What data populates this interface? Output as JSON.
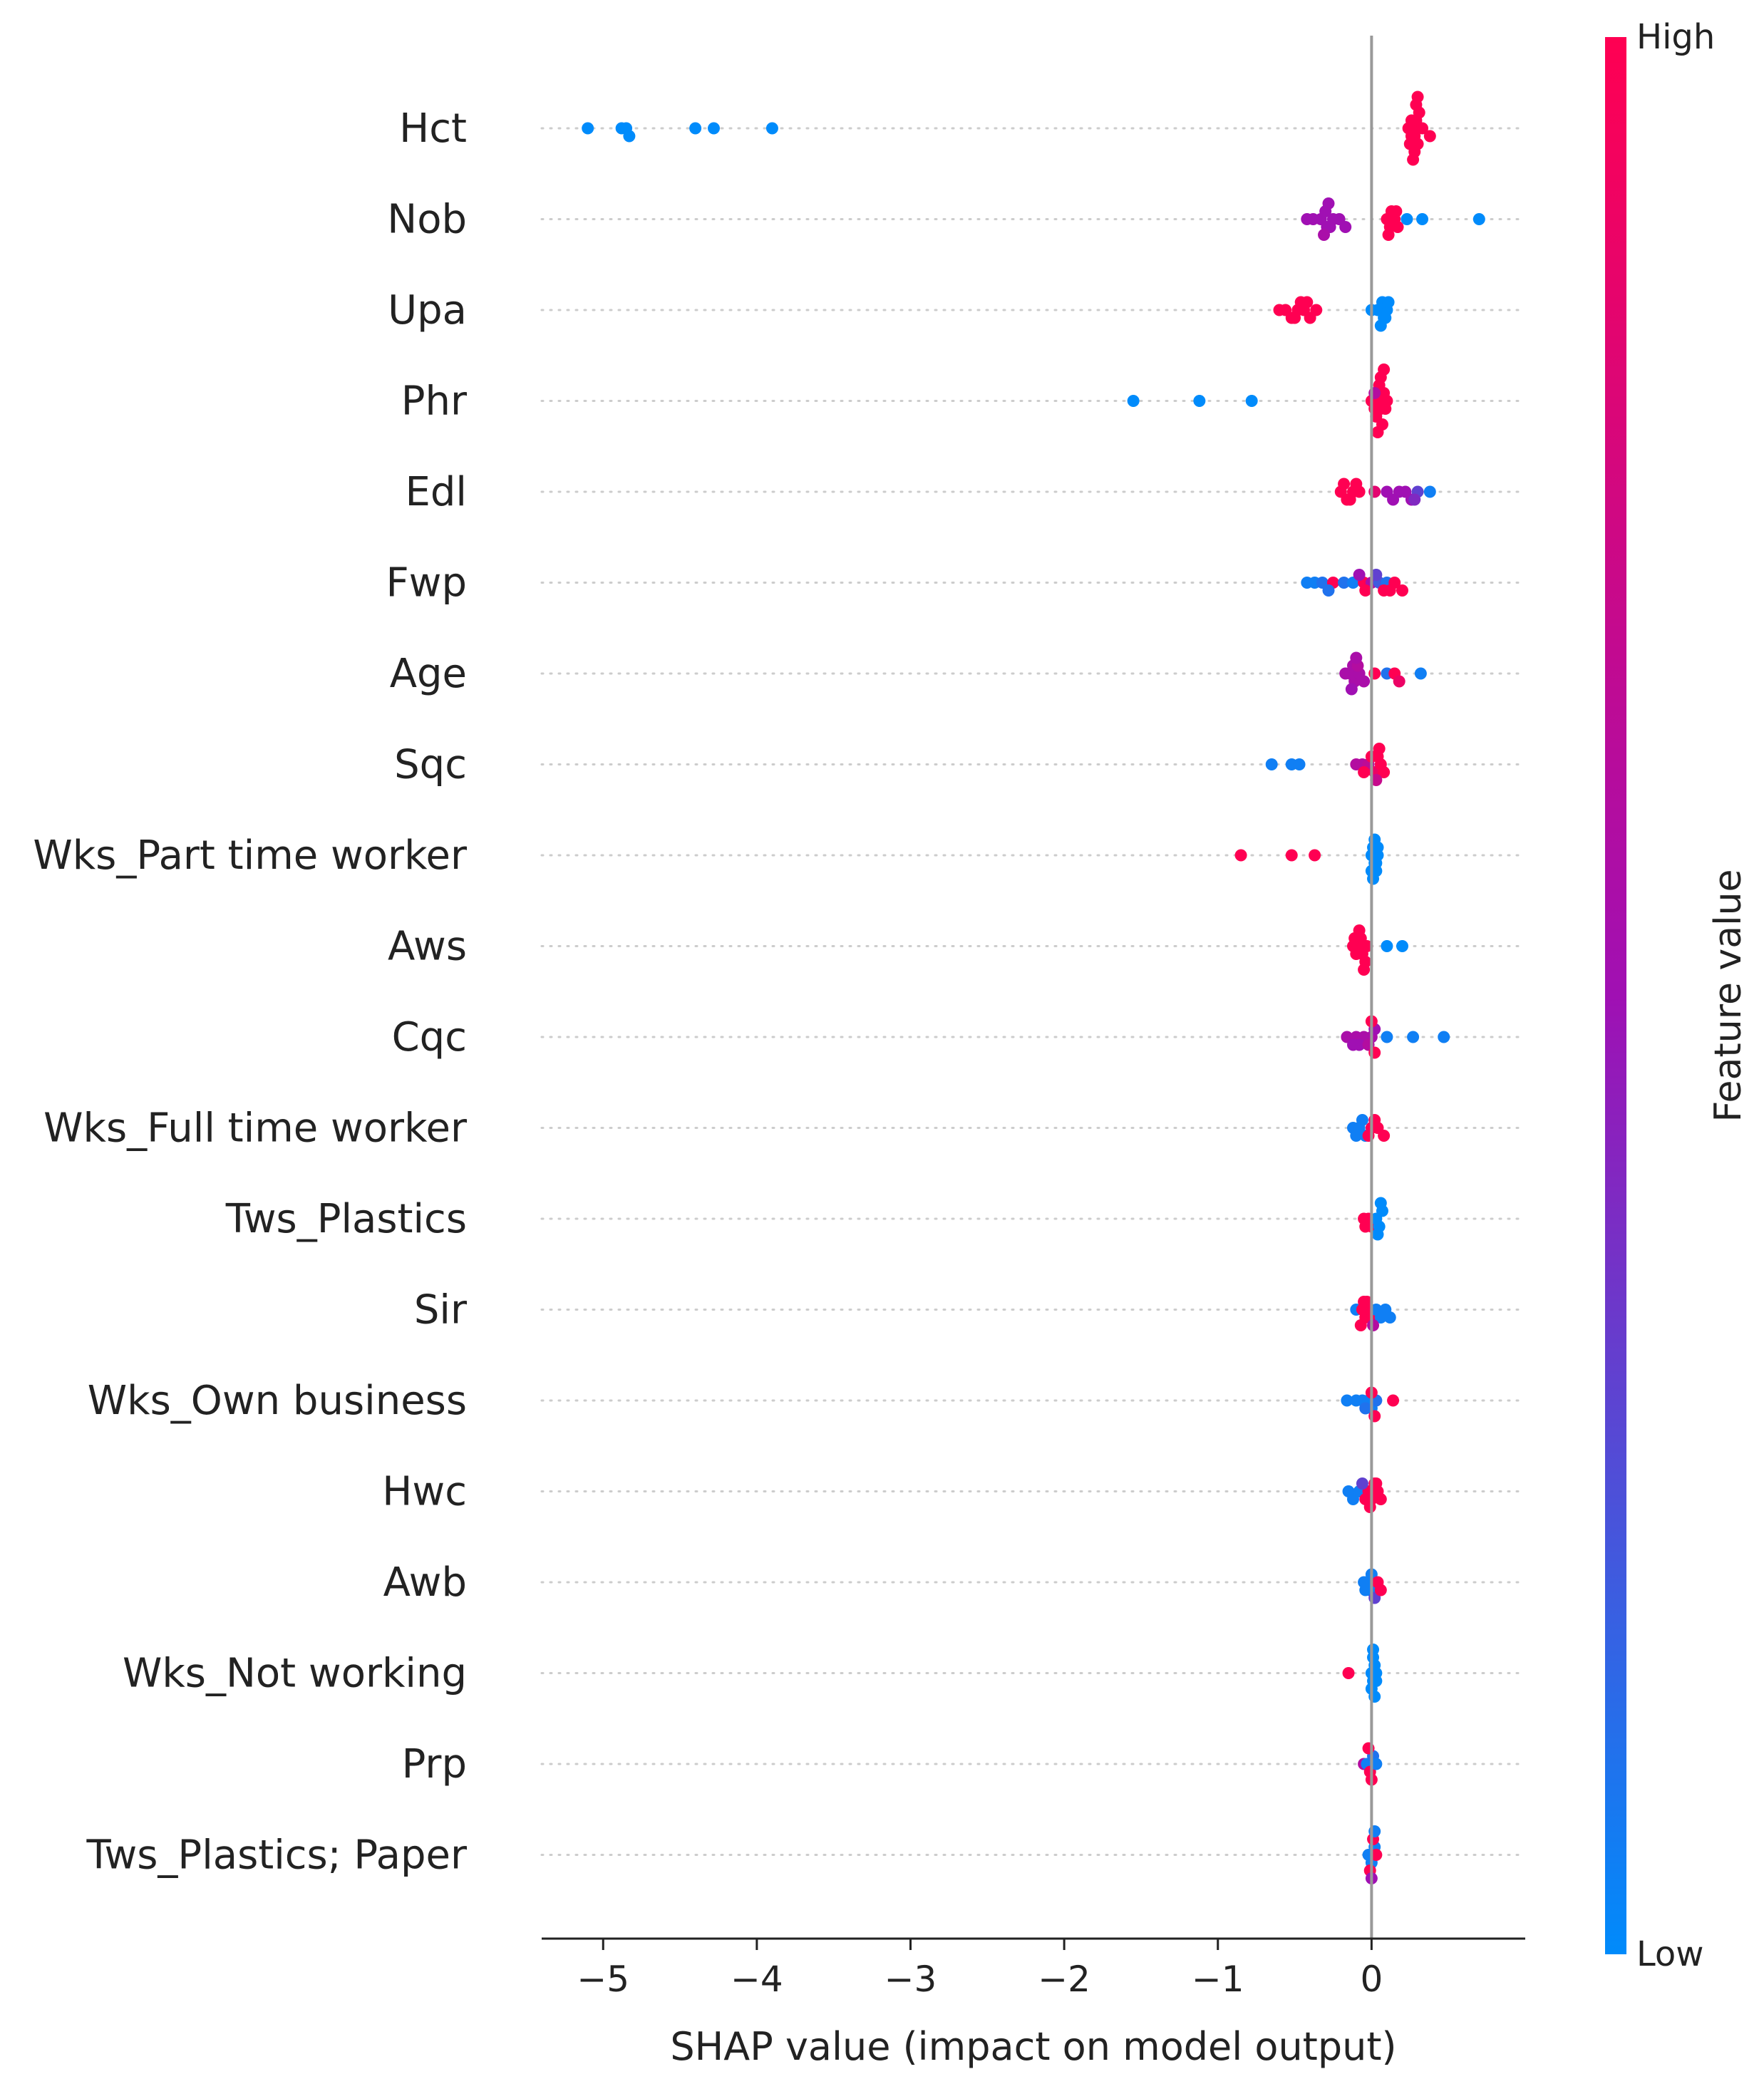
{
  "chart_data": {
    "type": "scatter",
    "subtype": "shap-beeswarm",
    "title": "",
    "xlabel": "SHAP value (impact on model output)",
    "ylabel": "",
    "xlim": [
      -5.4,
      1.0
    ],
    "xticks": [
      {
        "value": -5,
        "label": "−5"
      },
      {
        "value": -4,
        "label": "−4"
      },
      {
        "value": -3,
        "label": "−3"
      },
      {
        "value": -2,
        "label": "−2"
      },
      {
        "value": -1,
        "label": "−1"
      },
      {
        "value": 0,
        "label": "0"
      }
    ],
    "grid": false,
    "zero_line": true,
    "colorbar": {
      "title": "Feature value",
      "high_label": "High",
      "low_label": "Low",
      "low_color": "#008bfb",
      "mid_color": "#a010b3",
      "high_color": "#ff0052"
    },
    "features": [
      {
        "name": "Hct",
        "points": [
          [
            -5.1,
            0
          ],
          [
            -4.88,
            0
          ],
          [
            -4.85,
            0
          ],
          [
            -4.83,
            0
          ],
          [
            -4.4,
            0
          ],
          [
            -4.28,
            0
          ],
          [
            -3.9,
            0
          ],
          [
            0.24,
            1
          ],
          [
            0.26,
            1
          ],
          [
            0.27,
            1
          ],
          [
            0.28,
            1
          ],
          [
            0.29,
            1
          ],
          [
            0.3,
            1
          ],
          [
            0.31,
            1
          ],
          [
            0.26,
            1
          ],
          [
            0.28,
            1
          ],
          [
            0.33,
            1
          ],
          [
            0.38,
            1
          ],
          [
            0.25,
            1
          ],
          [
            0.29,
            1
          ],
          [
            0.27,
            1
          ],
          [
            0.3,
            1
          ]
        ]
      },
      {
        "name": "Nob",
        "points": [
          [
            -0.42,
            0.5
          ],
          [
            -0.38,
            0.5
          ],
          [
            -0.33,
            0.5
          ],
          [
            -0.29,
            0.5
          ],
          [
            -0.25,
            0.5
          ],
          [
            -0.21,
            0.5
          ],
          [
            -0.17,
            0.5
          ],
          [
            -0.3,
            0.5
          ],
          [
            -0.27,
            0.5
          ],
          [
            -0.31,
            0.55
          ],
          [
            -0.28,
            0.5
          ],
          [
            0.1,
            1
          ],
          [
            0.12,
            1
          ],
          [
            0.15,
            1
          ],
          [
            0.17,
            1
          ],
          [
            0.13,
            1
          ],
          [
            0.11,
            1
          ],
          [
            0.16,
            1
          ],
          [
            0.23,
            0
          ],
          [
            0.33,
            0
          ],
          [
            0.7,
            0
          ]
        ]
      },
      {
        "name": "Upa",
        "points": [
          [
            -0.6,
            1
          ],
          [
            -0.56,
            1
          ],
          [
            -0.52,
            1
          ],
          [
            -0.48,
            1
          ],
          [
            -0.44,
            1
          ],
          [
            -0.4,
            1
          ],
          [
            -0.36,
            1
          ],
          [
            -0.5,
            1
          ],
          [
            -0.46,
            1
          ],
          [
            -0.42,
            1
          ],
          [
            0.0,
            0
          ],
          [
            0.04,
            0
          ],
          [
            0.08,
            0
          ],
          [
            0.1,
            0
          ],
          [
            0.07,
            0
          ],
          [
            0.09,
            0
          ],
          [
            0.06,
            0
          ],
          [
            0.11,
            0
          ]
        ]
      },
      {
        "name": "Phr",
        "points": [
          [
            -1.55,
            0
          ],
          [
            -1.12,
            0
          ],
          [
            -0.78,
            0
          ],
          [
            0.0,
            1
          ],
          [
            0.02,
            1
          ],
          [
            0.04,
            1
          ],
          [
            0.06,
            1
          ],
          [
            0.08,
            1
          ],
          [
            0.1,
            1
          ],
          [
            0.03,
            1
          ],
          [
            0.05,
            1
          ],
          [
            0.07,
            1
          ],
          [
            0.09,
            1
          ],
          [
            0.02,
            0.6
          ],
          [
            0.06,
            1
          ],
          [
            0.04,
            1
          ],
          [
            0.08,
            1
          ]
        ]
      },
      {
        "name": "Edl",
        "points": [
          [
            -0.2,
            1
          ],
          [
            -0.16,
            1
          ],
          [
            -0.12,
            1
          ],
          [
            -0.08,
            1
          ],
          [
            -0.18,
            1
          ],
          [
            -0.14,
            1
          ],
          [
            -0.1,
            1
          ],
          [
            0.02,
            0.85
          ],
          [
            0.1,
            0.5
          ],
          [
            0.14,
            0.5
          ],
          [
            0.18,
            0.5
          ],
          [
            0.22,
            0.5
          ],
          [
            0.26,
            0.5
          ],
          [
            0.3,
            0.3
          ],
          [
            0.38,
            0.05
          ],
          [
            0.28,
            0.4
          ]
        ]
      },
      {
        "name": "Fwp",
        "points": [
          [
            -0.42,
            0.05
          ],
          [
            -0.37,
            0.05
          ],
          [
            -0.32,
            0.1
          ],
          [
            -0.25,
            1
          ],
          [
            -0.18,
            0.1
          ],
          [
            -0.12,
            0.05
          ],
          [
            -0.05,
            1
          ],
          [
            0.0,
            0.55
          ],
          [
            0.05,
            0.2
          ],
          [
            0.1,
            0.1
          ],
          [
            0.15,
            1
          ],
          [
            0.2,
            1
          ],
          [
            -0.04,
            1
          ],
          [
            0.08,
            1
          ],
          [
            0.12,
            1
          ],
          [
            -0.08,
            0.5
          ],
          [
            0.03,
            0.3
          ],
          [
            -0.28,
            0.1
          ]
        ]
      },
      {
        "name": "Age",
        "points": [
          [
            -0.17,
            0.55
          ],
          [
            -0.14,
            0.55
          ],
          [
            -0.11,
            0.55
          ],
          [
            -0.08,
            0.55
          ],
          [
            -0.05,
            0.55
          ],
          [
            -0.12,
            0.55
          ],
          [
            -0.09,
            0.6
          ],
          [
            -0.13,
            0.5
          ],
          [
            -0.1,
            0.55
          ],
          [
            0.02,
            1
          ],
          [
            0.1,
            0.1
          ],
          [
            0.15,
            1
          ],
          [
            0.18,
            0.9
          ],
          [
            0.32,
            0.05
          ]
        ]
      },
      {
        "name": "Sqc",
        "points": [
          [
            -0.65,
            0.05
          ],
          [
            -0.52,
            0.05
          ],
          [
            -0.47,
            0.05
          ],
          [
            -0.1,
            0.6
          ],
          [
            -0.06,
            0.6
          ],
          [
            -0.02,
            0.65
          ],
          [
            0.02,
            0.9
          ],
          [
            0.06,
            1
          ],
          [
            0.08,
            1
          ],
          [
            -0.05,
            1
          ],
          [
            0.0,
            1
          ],
          [
            0.04,
            1
          ],
          [
            0.03,
            0.7
          ],
          [
            0.05,
            1
          ]
        ]
      },
      {
        "name": "Wks_Part time worker",
        "points": [
          [
            -0.85,
            1
          ],
          [
            -0.52,
            1
          ],
          [
            -0.37,
            1
          ],
          [
            0.0,
            0
          ],
          [
            0.02,
            0
          ],
          [
            0.04,
            0
          ],
          [
            0.01,
            0
          ],
          [
            0.03,
            0
          ],
          [
            0.0,
            0
          ],
          [
            0.02,
            0
          ],
          [
            0.04,
            0
          ],
          [
            0.01,
            0
          ],
          [
            0.03,
            0
          ]
        ]
      },
      {
        "name": "Aws",
        "points": [
          [
            -0.12,
            1
          ],
          [
            -0.09,
            1
          ],
          [
            -0.06,
            1
          ],
          [
            -0.03,
            1
          ],
          [
            -0.1,
            1
          ],
          [
            -0.07,
            1
          ],
          [
            -0.04,
            1
          ],
          [
            -0.08,
            1
          ],
          [
            -0.05,
            1
          ],
          [
            -0.11,
            1
          ],
          [
            0.1,
            0
          ],
          [
            0.2,
            0
          ]
        ]
      },
      {
        "name": "Cqc",
        "points": [
          [
            -0.16,
            0.55
          ],
          [
            -0.1,
            0.55
          ],
          [
            -0.05,
            0.55
          ],
          [
            0.0,
            0.55
          ],
          [
            -0.08,
            0.5
          ],
          [
            -0.02,
            0.6
          ],
          [
            0.02,
            0.5
          ],
          [
            -0.12,
            0.5
          ],
          [
            0.02,
            1
          ],
          [
            0.0,
            1
          ],
          [
            0.1,
            0.05
          ],
          [
            0.27,
            0.05
          ],
          [
            0.47,
            0.05
          ]
        ]
      },
      {
        "name": "Wks_Full time worker",
        "points": [
          [
            -0.12,
            0.05
          ],
          [
            -0.08,
            0.05
          ],
          [
            -0.04,
            0.05
          ],
          [
            -0.1,
            0.05
          ],
          [
            -0.06,
            0.05
          ],
          [
            0.0,
            1
          ],
          [
            0.04,
            1
          ],
          [
            0.08,
            1
          ],
          [
            -0.02,
            1
          ],
          [
            0.02,
            1
          ]
        ]
      },
      {
        "name": "Tws_Plastics",
        "points": [
          [
            -0.05,
            1
          ],
          [
            -0.02,
            1
          ],
          [
            -0.04,
            1
          ],
          [
            0.0,
            1
          ],
          [
            0.03,
            0
          ],
          [
            0.05,
            0
          ],
          [
            0.07,
            0
          ],
          [
            0.04,
            0
          ],
          [
            0.06,
            0
          ]
        ]
      },
      {
        "name": "Sir",
        "points": [
          [
            -0.1,
            0.05
          ],
          [
            -0.06,
            1
          ],
          [
            -0.04,
            1
          ],
          [
            -0.02,
            1
          ],
          [
            0.0,
            1
          ],
          [
            -0.05,
            1
          ],
          [
            -0.03,
            1
          ],
          [
            -0.07,
            1
          ],
          [
            0.03,
            0.05
          ],
          [
            0.06,
            0.05
          ],
          [
            0.09,
            0.05
          ],
          [
            0.12,
            0.05
          ],
          [
            0.01,
            0.6
          ]
        ]
      },
      {
        "name": "Wks_Own business",
        "points": [
          [
            -0.16,
            0.05
          ],
          [
            -0.1,
            0.05
          ],
          [
            -0.06,
            0.05
          ],
          [
            -0.02,
            0.05
          ],
          [
            0.0,
            0.05
          ],
          [
            0.03,
            0.1
          ],
          [
            -0.04,
            0.1
          ],
          [
            0.0,
            1
          ],
          [
            0.02,
            1
          ],
          [
            0.14,
            1
          ]
        ]
      },
      {
        "name": "Hwc",
        "points": [
          [
            -0.15,
            0.05
          ],
          [
            -0.12,
            0.05
          ],
          [
            -0.08,
            0.05
          ],
          [
            -0.04,
            1
          ],
          [
            -0.02,
            1
          ],
          [
            0.0,
            1
          ],
          [
            0.02,
            1
          ],
          [
            0.04,
            1
          ],
          [
            0.06,
            1
          ],
          [
            -0.01,
            1
          ],
          [
            0.03,
            1
          ],
          [
            -0.06,
            0.3
          ]
        ]
      },
      {
        "name": "Awb",
        "points": [
          [
            -0.05,
            0.05
          ],
          [
            -0.03,
            0.05
          ],
          [
            -0.01,
            0.05
          ],
          [
            -0.04,
            0.05
          ],
          [
            0.0,
            0.05
          ],
          [
            0.02,
            0.3
          ],
          [
            0.04,
            1
          ],
          [
            0.06,
            1
          ]
        ]
      },
      {
        "name": "Wks_Not working",
        "points": [
          [
            -0.15,
            1
          ],
          [
            0.0,
            0
          ],
          [
            0.01,
            0
          ],
          [
            0.02,
            0
          ],
          [
            0.03,
            0
          ],
          [
            0.0,
            0
          ],
          [
            0.01,
            0
          ],
          [
            0.02,
            0
          ],
          [
            0.03,
            0
          ],
          [
            0.01,
            0
          ]
        ]
      },
      {
        "name": "Prp",
        "points": [
          [
            -0.05,
            0.6
          ],
          [
            -0.03,
            0.05
          ],
          [
            -0.01,
            1
          ],
          [
            0.01,
            0.1
          ],
          [
            0.03,
            0.05
          ],
          [
            0.0,
            1
          ],
          [
            -0.02,
            1
          ]
        ]
      },
      {
        "name": "Tws_Plastics; Paper",
        "points": [
          [
            -0.02,
            0.05
          ],
          [
            0.0,
            0.05
          ],
          [
            0.02,
            0.05
          ],
          [
            -0.01,
            1
          ],
          [
            0.01,
            1
          ],
          [
            0.03,
            1
          ],
          [
            0.0,
            0.5
          ],
          [
            0.02,
            0.05
          ]
        ]
      }
    ]
  }
}
